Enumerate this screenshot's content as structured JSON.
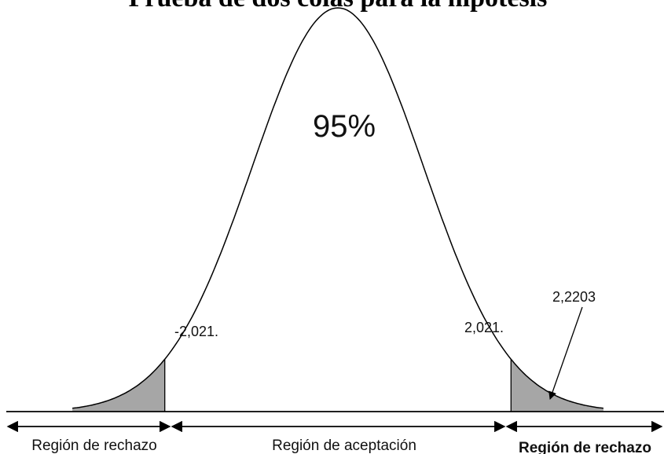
{
  "title": "Prueba de dos colas para la hipótesis",
  "center_label": "95%",
  "critical_left_label": "-2,021.",
  "critical_right_label": "2,021.",
  "test_stat_label": "2,2203",
  "region_left_label": "Región de rechazo",
  "region_middle_label": "Región de aceptación",
  "region_right_label": "Región de rechazo",
  "colors": {
    "tail_fill": "#a6a6a6",
    "curve": "#000000"
  },
  "chart_data": {
    "type": "area",
    "distribution": "normal",
    "critical_values": [
      -2.021,
      2.021
    ],
    "test_statistic": 2.2203,
    "acceptance_area_percent": 95,
    "x_range": [
      -3.1,
      3.1
    ]
  }
}
